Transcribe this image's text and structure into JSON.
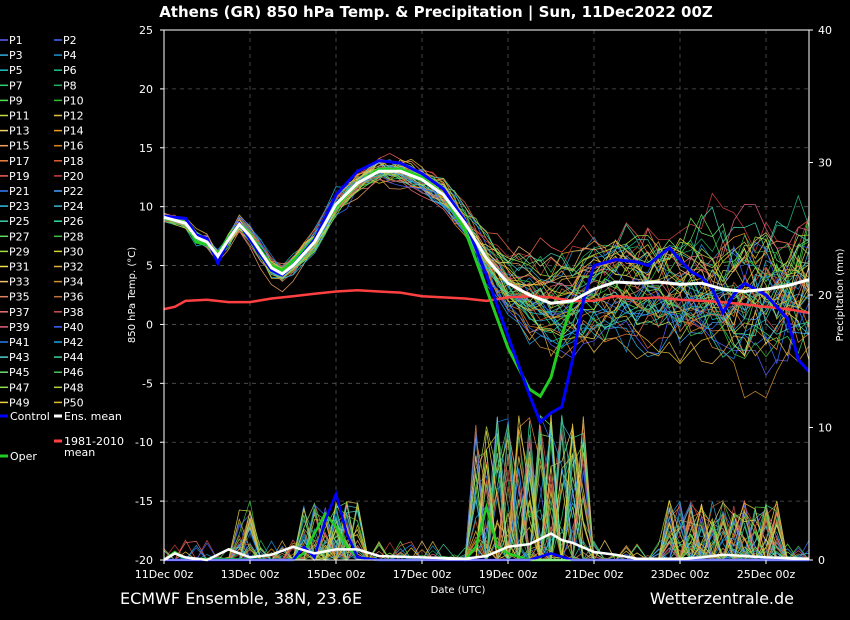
{
  "chart_data": {
    "type": "line",
    "title": "Athens  (GR)  850 hPa Temp. & Precipitation | Sun, 11Dec2022 00Z",
    "xlabel": "Date (UTC)",
    "ylabel": "850 hPa Temp. (°C)",
    "y2label": "Precipitation (mm)",
    "ylim": [
      -20,
      25
    ],
    "y2lim": [
      0,
      40
    ],
    "yticks": [
      "25",
      "20",
      "15",
      "10",
      "5",
      "0",
      "-5",
      "-10",
      "-15",
      "-20"
    ],
    "y2ticks": [
      "40",
      "30",
      "20",
      "10",
      "0"
    ],
    "xticks": [
      "11Dec 00z",
      "13Dec 00z",
      "15Dec 00z",
      "17Dec 00z",
      "19Dec 00z",
      "21Dec 00z",
      "23Dec 00z",
      "25Dec 00z"
    ],
    "x_days": [
      0,
      15
    ],
    "grid": true,
    "legend_position": "left",
    "legend": {
      "members": [
        "P1",
        "P2",
        "P3",
        "P4",
        "P5",
        "P6",
        "P7",
        "P8",
        "P9",
        "P10",
        "P11",
        "P12",
        "P13",
        "P14",
        "P15",
        "P16",
        "P17",
        "P18",
        "P19",
        "P20",
        "P21",
        "P22",
        "P23",
        "P24",
        "P25",
        "P26",
        "P27",
        "P28",
        "P29",
        "P30",
        "P31",
        "P32",
        "P33",
        "P34",
        "P35",
        "P36",
        "P37",
        "P38",
        "P39",
        "P40",
        "P41",
        "P42",
        "P43",
        "P44",
        "P45",
        "P46",
        "P47",
        "P48",
        "P49",
        "P50"
      ],
      "control": "Control",
      "mean": "Ens. mean",
      "climate": "1981-2010 mean",
      "oper": "Oper"
    },
    "member_colors": [
      "#5f5fff",
      "#3b6fff",
      "#2ab0e0",
      "#2090d0",
      "#20c0c0",
      "#20c090",
      "#30d070",
      "#20b060",
      "#50e050",
      "#30c030",
      "#c0e040",
      "#e0c040",
      "#f0d060",
      "#f0a020",
      "#f0a060",
      "#e08020",
      "#f08040",
      "#e06030",
      "#f06050",
      "#d04040",
      "#3080ff",
      "#40a0ff",
      "#30c0e0",
      "#40b0d0",
      "#40d0b0",
      "#30e0a0",
      "#60e060",
      "#40c040",
      "#a0e040",
      "#d0d030",
      "#f0e050",
      "#e0b040",
      "#f0c070",
      "#d09030",
      "#e08060",
      "#c07040",
      "#f07070",
      "#d05050",
      "#e06080",
      "#4060ff",
      "#2080f0",
      "#20a0e0",
      "#50d0d0",
      "#40d0a0",
      "#70e070",
      "#50c060",
      "#90e050",
      "#b0d040",
      "#f0d040",
      "#e0c030"
    ],
    "colors": {
      "control": "#0000ff",
      "mean": "#ffffff",
      "climate": "#ff4040",
      "oper": "#22cc22"
    },
    "control_temp": [
      [
        0,
        9.2
      ],
      [
        0.5,
        9.0
      ],
      [
        0.75,
        7.6
      ],
      [
        1.0,
        7.3
      ],
      [
        1.25,
        5.2
      ],
      [
        1.5,
        7.2
      ],
      [
        1.75,
        8.6
      ],
      [
        2.0,
        7.2
      ],
      [
        2.5,
        4.6
      ],
      [
        2.75,
        4.2
      ],
      [
        3.0,
        5.0
      ],
      [
        3.5,
        7.2
      ],
      [
        4.0,
        11.0
      ],
      [
        4.5,
        13.0
      ],
      [
        5.0,
        13.9
      ],
      [
        5.5,
        13.7
      ],
      [
        6.0,
        12.8
      ],
      [
        6.5,
        11.5
      ],
      [
        7.0,
        8.8
      ],
      [
        7.5,
        4.2
      ],
      [
        8.0,
        -1.0
      ],
      [
        8.5,
        -6.0
      ],
      [
        8.75,
        -8.3
      ],
      [
        9.0,
        -7.5
      ],
      [
        9.25,
        -7.0
      ],
      [
        9.5,
        -3.0
      ],
      [
        9.75,
        2.0
      ],
      [
        10.0,
        5.0
      ],
      [
        10.5,
        5.5
      ],
      [
        11.0,
        5.3
      ],
      [
        11.25,
        5.0
      ],
      [
        11.5,
        5.8
      ],
      [
        11.75,
        6.5
      ],
      [
        12.0,
        5.5
      ],
      [
        12.25,
        4.5
      ],
      [
        12.5,
        4.0
      ],
      [
        12.75,
        3.0
      ],
      [
        13.0,
        1.0
      ],
      [
        13.25,
        2.5
      ],
      [
        13.5,
        3.5
      ],
      [
        14.0,
        2.5
      ],
      [
        14.5,
        0.5
      ],
      [
        14.75,
        -3.0
      ],
      [
        15.0,
        -4.0
      ]
    ],
    "mean_temp": [
      [
        0,
        9.1
      ],
      [
        0.5,
        8.6
      ],
      [
        0.75,
        7.4
      ],
      [
        1.0,
        7.0
      ],
      [
        1.25,
        5.8
      ],
      [
        1.5,
        7.2
      ],
      [
        1.75,
        8.5
      ],
      [
        2.0,
        7.5
      ],
      [
        2.5,
        4.8
      ],
      [
        2.75,
        4.3
      ],
      [
        3.0,
        5.0
      ],
      [
        3.5,
        7.0
      ],
      [
        4.0,
        10.2
      ],
      [
        4.5,
        12.0
      ],
      [
        5.0,
        13.0
      ],
      [
        5.5,
        13.0
      ],
      [
        6.0,
        12.3
      ],
      [
        6.5,
        11.0
      ],
      [
        7.0,
        8.6
      ],
      [
        7.5,
        5.6
      ],
      [
        8.0,
        3.5
      ],
      [
        8.5,
        2.5
      ],
      [
        9.0,
        1.8
      ],
      [
        9.5,
        2.0
      ],
      [
        10.0,
        3.0
      ],
      [
        10.5,
        3.6
      ],
      [
        11.0,
        3.5
      ],
      [
        11.5,
        3.6
      ],
      [
        12.0,
        3.4
      ],
      [
        12.5,
        3.5
      ],
      [
        13.0,
        3.0
      ],
      [
        13.5,
        2.8
      ],
      [
        14.0,
        3.0
      ],
      [
        14.5,
        3.3
      ],
      [
        15.0,
        3.8
      ]
    ],
    "oper_temp": [
      [
        0,
        9.0
      ],
      [
        0.5,
        8.7
      ],
      [
        0.75,
        7.0
      ],
      [
        1.0,
        6.8
      ],
      [
        1.25,
        6.0
      ],
      [
        1.5,
        7.4
      ],
      [
        1.75,
        8.6
      ],
      [
        2.0,
        7.6
      ],
      [
        2.5,
        5.0
      ],
      [
        2.75,
        4.6
      ],
      [
        3.0,
        5.4
      ],
      [
        3.5,
        7.3
      ],
      [
        4.0,
        10.0
      ],
      [
        4.5,
        12.0
      ],
      [
        5.0,
        13.2
      ],
      [
        5.5,
        13.2
      ],
      [
        6.0,
        12.5
      ],
      [
        6.5,
        11.0
      ],
      [
        7.0,
        8.0
      ],
      [
        7.5,
        3.0
      ],
      [
        8.0,
        -2.0
      ],
      [
        8.5,
        -5.5
      ],
      [
        8.75,
        -6.1
      ],
      [
        9.0,
        -4.5
      ],
      [
        9.25,
        -1.0
      ],
      [
        9.5,
        2.0
      ]
    ],
    "climate_temp": [
      [
        0,
        1.3
      ],
      [
        0.25,
        1.5
      ],
      [
        0.5,
        2.0
      ],
      [
        1.0,
        2.1
      ],
      [
        1.5,
        1.9
      ],
      [
        2.0,
        1.9
      ],
      [
        2.5,
        2.2
      ],
      [
        3.0,
        2.4
      ],
      [
        3.5,
        2.6
      ],
      [
        4.0,
        2.8
      ],
      [
        4.5,
        2.9
      ],
      [
        5.0,
        2.8
      ],
      [
        5.5,
        2.7
      ],
      [
        6.0,
        2.4
      ],
      [
        6.5,
        2.3
      ],
      [
        7.0,
        2.2
      ],
      [
        7.5,
        2.0
      ],
      [
        8.0,
        2.3
      ],
      [
        8.5,
        2.4
      ],
      [
        9.0,
        2.3
      ],
      [
        9.5,
        2.0
      ],
      [
        10.0,
        2.0
      ],
      [
        10.5,
        2.4
      ],
      [
        11.0,
        2.2
      ],
      [
        11.5,
        2.3
      ],
      [
        12.0,
        2.1
      ],
      [
        12.5,
        2.0
      ],
      [
        13.0,
        1.9
      ],
      [
        13.5,
        1.7
      ],
      [
        14.0,
        1.5
      ],
      [
        14.5,
        1.3
      ],
      [
        15.0,
        1.0
      ]
    ],
    "control_precip": [
      [
        0,
        0
      ],
      [
        3.0,
        0
      ],
      [
        3.25,
        1.0
      ],
      [
        3.5,
        0.2
      ],
      [
        3.75,
        3.0
      ],
      [
        4.0,
        5.0
      ],
      [
        4.25,
        2.0
      ],
      [
        4.5,
        0.2
      ],
      [
        5.0,
        0
      ],
      [
        8.5,
        0
      ],
      [
        9.0,
        0.5
      ],
      [
        9.5,
        0
      ],
      [
        15.0,
        0
      ]
    ],
    "mean_precip": [
      [
        0,
        0
      ],
      [
        0.25,
        0.5
      ],
      [
        0.5,
        0.2
      ],
      [
        1.0,
        0
      ],
      [
        1.5,
        0.8
      ],
      [
        2.0,
        0.2
      ],
      [
        2.5,
        0.4
      ],
      [
        3.0,
        1.0
      ],
      [
        3.5,
        0.5
      ],
      [
        4.0,
        0.8
      ],
      [
        4.5,
        0.8
      ],
      [
        5.0,
        0.3
      ],
      [
        6.0,
        0.2
      ],
      [
        7.0,
        0.1
      ],
      [
        7.5,
        0.3
      ],
      [
        8.0,
        1.0
      ],
      [
        8.5,
        1.2
      ],
      [
        9.0,
        2.0
      ],
      [
        9.25,
        1.5
      ],
      [
        9.5,
        1.3
      ],
      [
        10.0,
        0.6
      ],
      [
        10.5,
        0.4
      ],
      [
        11.0,
        0.1
      ],
      [
        12.0,
        0.1
      ],
      [
        12.5,
        0.2
      ],
      [
        13.0,
        0.4
      ],
      [
        13.5,
        0.3
      ],
      [
        14.0,
        0.2
      ],
      [
        15.0,
        0.1
      ]
    ],
    "oper_precip": [
      [
        0,
        0
      ],
      [
        0.25,
        0.6
      ],
      [
        0.5,
        0.1
      ],
      [
        3.0,
        0
      ],
      [
        3.25,
        0.5
      ],
      [
        3.5,
        2.0
      ],
      [
        3.75,
        3.5
      ],
      [
        4.0,
        2.5
      ],
      [
        4.25,
        1.0
      ],
      [
        4.5,
        0.2
      ],
      [
        5.0,
        0
      ],
      [
        6.0,
        0
      ],
      [
        6.5,
        0.2
      ],
      [
        7.0,
        0
      ],
      [
        7.25,
        1.0
      ],
      [
        7.5,
        4.0
      ],
      [
        7.75,
        1.0
      ],
      [
        8.0,
        0.5
      ],
      [
        8.5,
        0
      ],
      [
        15.0,
        0
      ]
    ]
  },
  "footer": {
    "left": "ECMWF Ensemble, 38N, 23.6E",
    "right": "Wetterzentrale.de"
  }
}
